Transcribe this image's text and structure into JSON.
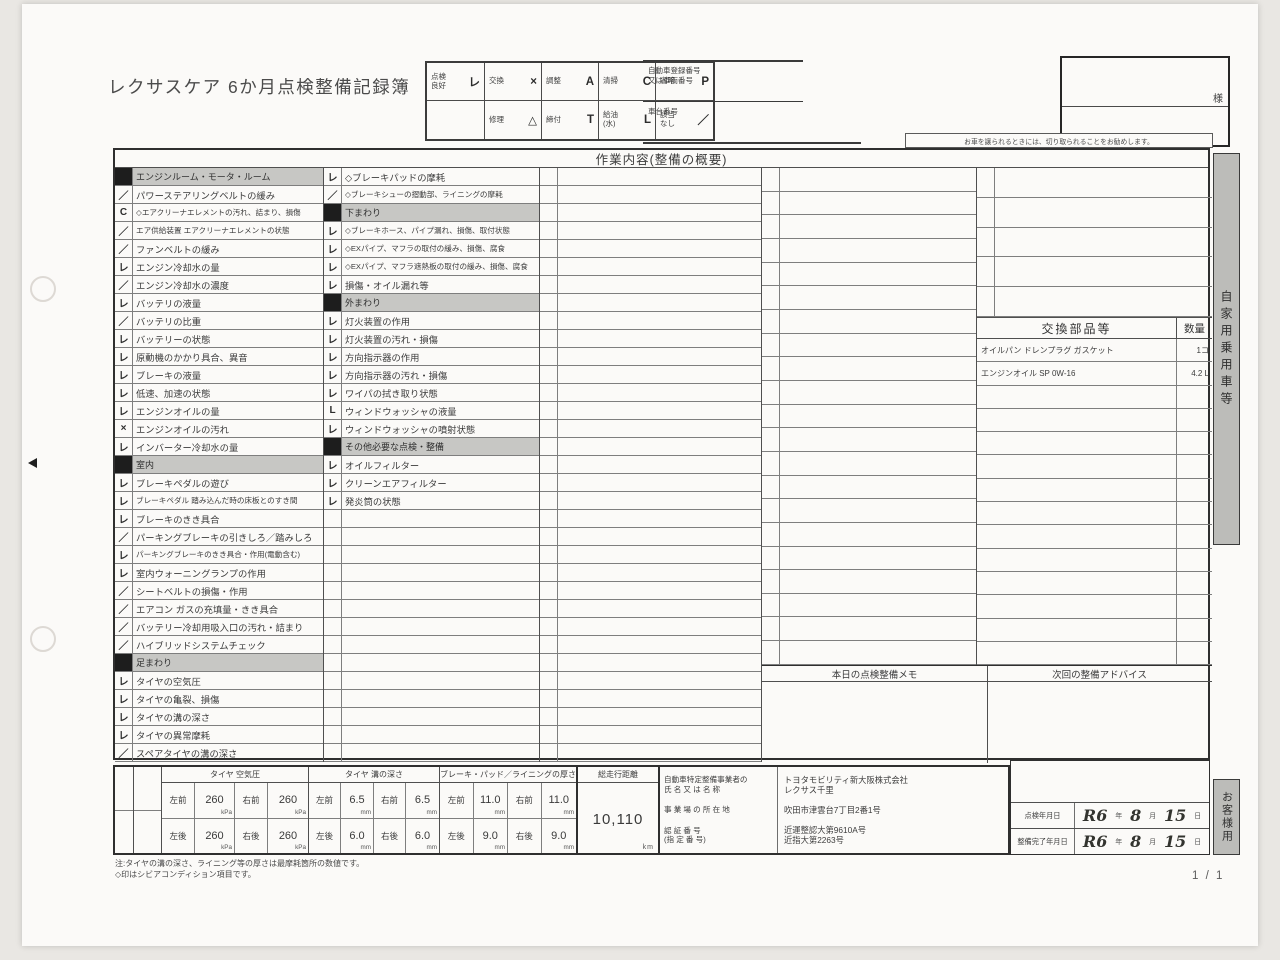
{
  "page": {
    "title": "レクサスケア 6か月点検整備記録簿",
    "page_number": "1 / 1",
    "side_tab_top": "自家用乗用車等",
    "side_tab_bottom": "お客様用"
  },
  "legend": {
    "cells": [
      {
        "label": "点検\n良好",
        "mark": "レ"
      },
      {
        "label": "交換",
        "mark": "×"
      },
      {
        "label": "調整",
        "mark": "A"
      },
      {
        "label": "清掃",
        "mark": "C"
      },
      {
        "label": "省略",
        "mark": "P"
      },
      {
        "label": "",
        "mark": ""
      },
      {
        "label": "修理",
        "mark": "△"
      },
      {
        "label": "締付",
        "mark": "T"
      },
      {
        "label": "給油\n(水)",
        "mark": "L"
      },
      {
        "label": "該当\nなし",
        "mark": "／"
      }
    ]
  },
  "vehicle_box": {
    "registration_label": "自動車登録番号\n又は車両番号",
    "chassis_label": "車台番号",
    "customer_suffix": "様",
    "cut_note": "お車を譲られるときには、切り取られることをお勧めします。"
  },
  "main_table": {
    "title": "作業内容(整備の概要)",
    "col1": [
      {
        "header": true,
        "t": "エンジンルーム・モータ・ルーム"
      },
      {
        "m": "／",
        "t": "パワーステアリングベルトの緩み"
      },
      {
        "m": "C",
        "t": "◇エアクリーナエレメントの汚れ、詰まり、損傷"
      },
      {
        "m": "／",
        "t": "エア供給装置 エアクリーナエレメントの状態"
      },
      {
        "m": "／",
        "t": "ファンベルトの緩み"
      },
      {
        "m": "レ",
        "t": "エンジン冷却水の量"
      },
      {
        "m": "／",
        "t": "エンジン冷却水の濃度"
      },
      {
        "m": "レ",
        "t": "バッテリの液量"
      },
      {
        "m": "／",
        "t": "バッテリの比重"
      },
      {
        "m": "レ",
        "t": "バッテリーの状態"
      },
      {
        "m": "レ",
        "t": "原動機のかかり具合、異音"
      },
      {
        "m": "レ",
        "t": "ブレーキの液量"
      },
      {
        "m": "レ",
        "t": "低速、加速の状態"
      },
      {
        "m": "レ",
        "t": "エンジンオイルの量"
      },
      {
        "m": "×",
        "t": "エンジンオイルの汚れ"
      },
      {
        "m": "レ",
        "t": "インバーター冷却水の量"
      },
      {
        "header": true,
        "t": "室内"
      },
      {
        "m": "レ",
        "t": "ブレーキペダルの遊び"
      },
      {
        "m": "レ",
        "t": "ブレーキペダル 踏み込んだ時の床板とのすき間"
      },
      {
        "m": "レ",
        "t": "ブレーキのきき具合"
      },
      {
        "m": "／",
        "t": "パーキングブレーキの引きしろ／踏みしろ"
      },
      {
        "m": "レ",
        "t": "パーキングブレーキのきき具合・作用(電動含む)"
      },
      {
        "m": "レ",
        "t": "室内ウォーニングランプの作用"
      },
      {
        "m": "／",
        "t": "シートベルトの損傷・作用"
      },
      {
        "m": "／",
        "t": "エアコン ガスの充填量・きき具合"
      },
      {
        "m": "／",
        "t": "バッテリー冷却用吸入口の汚れ・詰まり"
      },
      {
        "m": "／",
        "t": "ハイブリッドシステムチェック"
      },
      {
        "header": true,
        "t": "足まわり"
      },
      {
        "m": "レ",
        "t": "タイヤの空気圧"
      },
      {
        "m": "レ",
        "t": "タイヤの亀裂、損傷"
      },
      {
        "m": "レ",
        "t": "タイヤの溝の深さ"
      },
      {
        "m": "レ",
        "t": "タイヤの異常摩耗"
      },
      {
        "m": "／",
        "t": "スペアタイヤの溝の深さ"
      }
    ],
    "col2": [
      {
        "m": "レ",
        "t": "◇ブレーキパッドの摩耗"
      },
      {
        "m": "／",
        "t": "◇ブレーキシューの摺動部、ライニングの摩耗"
      },
      {
        "header": true,
        "t": "下まわり"
      },
      {
        "m": "レ",
        "t": "◇ブレーキホース、パイプ漏れ、損傷、取付状態"
      },
      {
        "m": "レ",
        "t": "◇EXパイプ、マフラの取付の緩み、損傷、腐食"
      },
      {
        "m": "レ",
        "t": "◇EXパイプ、マフラ遮熱板の取付の緩み、損傷、腐食"
      },
      {
        "m": "レ",
        "t": "損傷・オイル漏れ等"
      },
      {
        "header": true,
        "t": "外まわり"
      },
      {
        "m": "レ",
        "t": "灯火装置の作用"
      },
      {
        "m": "レ",
        "t": "灯火装置の汚れ・損傷"
      },
      {
        "m": "レ",
        "t": "方向指示器の作用"
      },
      {
        "m": "レ",
        "t": "方向指示器の汚れ・損傷"
      },
      {
        "m": "レ",
        "t": "ワイパの拭き取り状態"
      },
      {
        "m": "L",
        "t": "ウィンドウォッシャの液量"
      },
      {
        "m": "レ",
        "t": "ウィンドウォッシャの噴射状態"
      },
      {
        "header": true,
        "t": "その他必要な点検・整備"
      },
      {
        "m": "レ",
        "t": "オイルフィルター"
      },
      {
        "m": "レ",
        "t": "クリーンエアフィルター"
      },
      {
        "m": "レ",
        "t": "発炎筒の状態"
      }
    ]
  },
  "parts": {
    "header": "交換部品等",
    "qty_header": "数量",
    "rows": [
      {
        "name": "オイルパン ドレンプラグ ガスケット",
        "qty": "1コ"
      },
      {
        "name": "エンジンオイル SP 0W-16",
        "qty": "4.2 L"
      }
    ]
  },
  "memo": {
    "today_header": "本日の点検整備メモ",
    "next_header": "次回の整備アドバイス"
  },
  "measurements": {
    "groups": [
      {
        "header": "タイヤ 空気圧",
        "unit": "kPa",
        "rows": [
          [
            "左前",
            "260",
            "右前",
            "260"
          ],
          [
            "左後",
            "260",
            "右後",
            "260"
          ]
        ]
      },
      {
        "header": "タイヤ 溝の深さ",
        "unit": "mm",
        "rows": [
          [
            "左前",
            "6.5",
            "右前",
            "6.5"
          ],
          [
            "左後",
            "6.0",
            "右後",
            "6.0"
          ]
        ]
      },
      {
        "header": "ブレーキ・パッド／ライニングの厚さ",
        "unit": "mm",
        "rows": [
          [
            "左前",
            "11.0",
            "右前",
            "11.0"
          ],
          [
            "左後",
            "9.0",
            "右後",
            "9.0"
          ]
        ]
      }
    ]
  },
  "odometer": {
    "label": "総走行距離",
    "value": "10,110",
    "unit": "km"
  },
  "shop": {
    "labels": [
      "自動車特定整備事業者の\n氏 名 又 は 名 称",
      "事 業 場 の 所 在 地",
      "認 証 番 号\n(指 定 番 号)"
    ],
    "values": [
      "トヨタモビリティ新大阪株式会社\nレクサス千里",
      "吹田市津雲台7丁目2番1号",
      "近運整認大第9610A号\n近指大第2263号"
    ]
  },
  "dates": {
    "rows": [
      {
        "label": "点検年月日",
        "era": "R6",
        "year_unit": "年",
        "month": "8",
        "month_unit": "月",
        "day": "15",
        "day_unit": "日"
      },
      {
        "label": "整備完了年月日",
        "era": "R6",
        "year_unit": "年",
        "month": "8",
        "month_unit": "月",
        "day": "15",
        "day_unit": "日"
      }
    ]
  },
  "notes": "注:タイヤの溝の深さ、ライニング等の厚さは最摩耗箇所の数値です。\n◇印はシビアコンディション項目です。"
}
